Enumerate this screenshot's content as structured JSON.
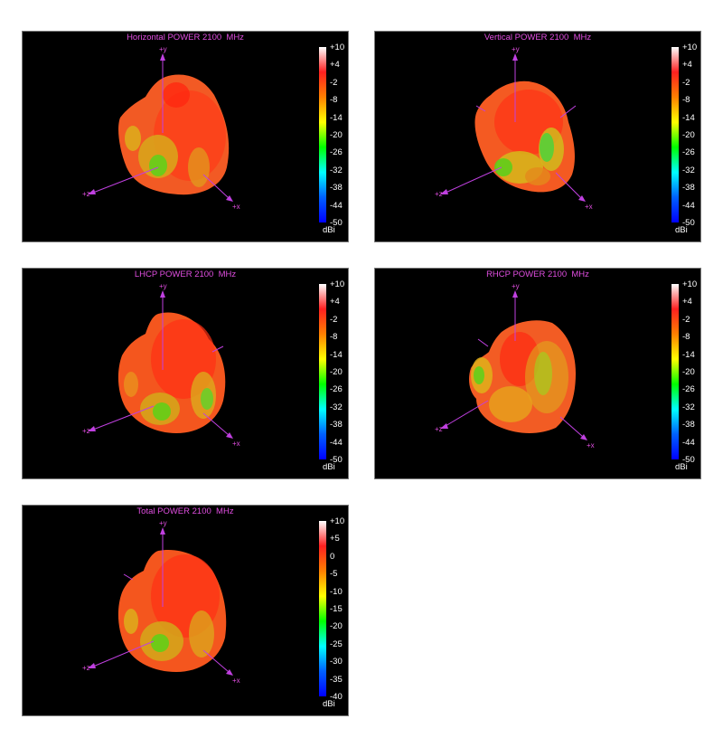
{
  "panels": [
    {
      "title": "Horizontal POWER 2100  MHz",
      "ticks": [
        "+10",
        "+4",
        "-2",
        "-8",
        "-14",
        "-20",
        "-26",
        "-32",
        "-38",
        "-44",
        "-50"
      ],
      "unit": "dBi",
      "axes": {
        "y": "+y",
        "z": "+z",
        "x": "+x"
      }
    },
    {
      "title": "Vertical POWER 2100  MHz",
      "ticks": [
        "+10",
        "+4",
        "-2",
        "-8",
        "-14",
        "-20",
        "-26",
        "-32",
        "-38",
        "-44",
        "-50"
      ],
      "unit": "dBi",
      "axes": {
        "y": "+y",
        "z": "+z",
        "x": "+x"
      }
    },
    {
      "title": "LHCP POWER 2100  MHz",
      "ticks": [
        "+10",
        "+4",
        "-2",
        "-8",
        "-14",
        "-20",
        "-26",
        "-32",
        "-38",
        "-44",
        "-50"
      ],
      "unit": "dBi",
      "axes": {
        "y": "+y",
        "z": "+z",
        "x": "+x"
      }
    },
    {
      "title": "RHCP POWER 2100  MHz",
      "ticks": [
        "+10",
        "+4",
        "-2",
        "-8",
        "-14",
        "-20",
        "-26",
        "-32",
        "-38",
        "-44",
        "-50"
      ],
      "unit": "dBi",
      "axes": {
        "y": "+y",
        "z": "+z",
        "x": "+x"
      }
    },
    {
      "title": "Total POWER 2100  MHz",
      "ticks": [
        "+10",
        "+5",
        "0",
        "-5",
        "-10",
        "-15",
        "-20",
        "-25",
        "-30",
        "-35",
        "-40"
      ],
      "unit": "dBi",
      "axes": {
        "y": "+y",
        "z": "+z",
        "x": "+x"
      }
    }
  ],
  "colors": {
    "title": "#e04ee0",
    "axis": "#c040e0",
    "scale_stops": [
      "#ffffff",
      "#ff2020",
      "#ff8000",
      "#ffff00",
      "#00ff00",
      "#00ffff",
      "#0060ff",
      "#0000ff"
    ]
  }
}
